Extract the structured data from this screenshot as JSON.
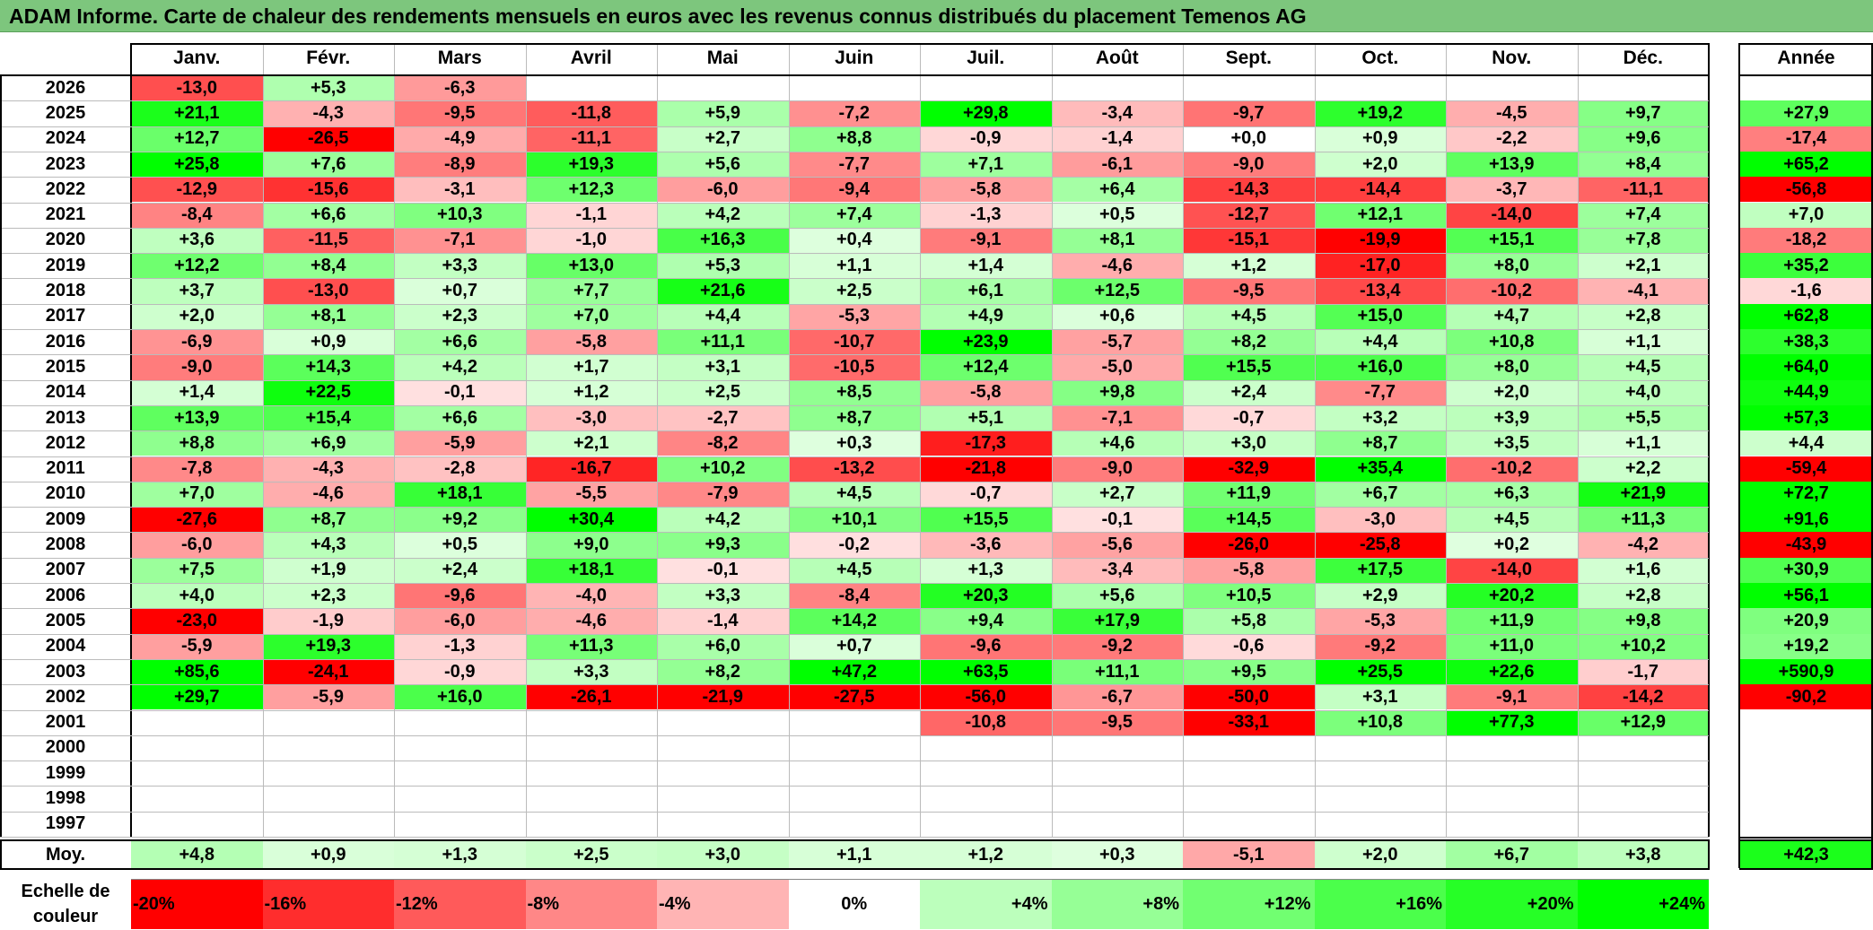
{
  "title": "ADAM Informe. Carte de chaleur des rendements mensuels en euros avec les revenus connus distribués du placement Temenos AG",
  "chart_data": {
    "type": "heatmap",
    "title": "ADAM Informe. Carte de chaleur des rendements mensuels en euros avec les revenus connus distribués du placement Temenos AG",
    "months": [
      "Janv.",
      "Févr.",
      "Mars",
      "Avril",
      "Mai",
      "Juin",
      "Juil.",
      "Août",
      "Sept.",
      "Oct.",
      "Nov.",
      "Déc."
    ],
    "annual_label": "Année",
    "average_label": "Moy.",
    "years": [
      "2026",
      "2025",
      "2024",
      "2023",
      "2022",
      "2021",
      "2020",
      "2019",
      "2018",
      "2017",
      "2016",
      "2015",
      "2014",
      "2013",
      "2012",
      "2011",
      "2010",
      "2009",
      "2008",
      "2007",
      "2006",
      "2005",
      "2004",
      "2003",
      "2002",
      "2001",
      "2000",
      "1999",
      "1998",
      "1997"
    ],
    "values": [
      [
        "-13,0",
        "+5,3",
        "-6,3",
        "",
        "",
        "",
        "",
        "",
        "",
        "",
        "",
        ""
      ],
      [
        "+21,1",
        "-4,3",
        "-9,5",
        "-11,8",
        "+5,9",
        "-7,2",
        "+29,8",
        "-3,4",
        "-9,7",
        "+19,2",
        "-4,5",
        "+9,7"
      ],
      [
        "+12,7",
        "-26,5",
        "-4,9",
        "-11,1",
        "+2,7",
        "+8,8",
        "-0,9",
        "-1,4",
        "+0,0",
        "+0,9",
        "-2,2",
        "+9,6"
      ],
      [
        "+25,8",
        "+7,6",
        "-8,9",
        "+19,3",
        "+5,6",
        "-7,7",
        "+7,1",
        "-6,1",
        "-9,0",
        "+2,0",
        "+13,9",
        "+8,4"
      ],
      [
        "-12,9",
        "-15,6",
        "-3,1",
        "+12,3",
        "-6,0",
        "-9,4",
        "-5,8",
        "+6,4",
        "-14,3",
        "-14,4",
        "-3,7",
        "-11,1"
      ],
      [
        "-8,4",
        "+6,6",
        "+10,3",
        "-1,1",
        "+4,2",
        "+7,4",
        "-1,3",
        "+0,5",
        "-12,7",
        "+12,1",
        "-14,0",
        "+7,4"
      ],
      [
        "+3,6",
        "-11,5",
        "-7,1",
        "-1,0",
        "+16,3",
        "+0,4",
        "-9,1",
        "+8,1",
        "-15,1",
        "-19,9",
        "+15,1",
        "+7,8"
      ],
      [
        "+12,2",
        "+8,4",
        "+3,3",
        "+13,0",
        "+5,3",
        "+1,1",
        "+1,4",
        "-4,6",
        "+1,2",
        "-17,0",
        "+8,0",
        "+2,1"
      ],
      [
        "+3,7",
        "-13,0",
        "+0,7",
        "+7,7",
        "+21,6",
        "+2,5",
        "+6,1",
        "+12,5",
        "-9,5",
        "-13,4",
        "-10,2",
        "-4,1"
      ],
      [
        "+2,0",
        "+8,1",
        "+2,3",
        "+7,0",
        "+4,4",
        "-5,3",
        "+4,9",
        "+0,6",
        "+4,5",
        "+15,0",
        "+4,7",
        "+2,8"
      ],
      [
        "-6,9",
        "+0,9",
        "+6,6",
        "-5,8",
        "+11,1",
        "-10,7",
        "+23,9",
        "-5,7",
        "+8,2",
        "+4,4",
        "+10,8",
        "+1,1"
      ],
      [
        "-9,0",
        "+14,3",
        "+4,2",
        "+1,7",
        "+3,1",
        "-10,5",
        "+12,4",
        "-5,0",
        "+15,5",
        "+16,0",
        "+8,0",
        "+4,5"
      ],
      [
        "+1,4",
        "+22,5",
        "-0,1",
        "+1,2",
        "+2,5",
        "+8,5",
        "-5,8",
        "+9,8",
        "+2,4",
        "-7,7",
        "+2,0",
        "+4,0"
      ],
      [
        "+13,9",
        "+15,4",
        "+6,6",
        "-3,0",
        "-2,7",
        "+8,7",
        "+5,1",
        "-7,1",
        "-0,7",
        "+3,2",
        "+3,9",
        "+5,5"
      ],
      [
        "+8,8",
        "+6,9",
        "-5,9",
        "+2,1",
        "-8,2",
        "+0,3",
        "-17,3",
        "+4,6",
        "+3,0",
        "+8,7",
        "+3,5",
        "+1,1"
      ],
      [
        "-7,8",
        "-4,3",
        "-2,8",
        "-16,7",
        "+10,2",
        "-13,2",
        "-21,8",
        "-9,0",
        "-32,9",
        "+35,4",
        "-10,2",
        "+2,2"
      ],
      [
        "+7,0",
        "-4,6",
        "+18,1",
        "-5,5",
        "-7,9",
        "+4,5",
        "-0,7",
        "+2,7",
        "+11,9",
        "+6,7",
        "+6,3",
        "+21,9"
      ],
      [
        "-27,6",
        "+8,7",
        "+9,2",
        "+30,4",
        "+4,2",
        "+10,1",
        "+15,5",
        "-0,1",
        "+14,5",
        "-3,0",
        "+4,5",
        "+11,3"
      ],
      [
        "-6,0",
        "+4,3",
        "+0,5",
        "+9,0",
        "+9,3",
        "-0,2",
        "-3,6",
        "-5,6",
        "-26,0",
        "-25,8",
        "+0,2",
        "-4,2"
      ],
      [
        "+7,5",
        "+1,9",
        "+2,4",
        "+18,1",
        "-0,1",
        "+4,5",
        "+1,3",
        "-3,4",
        "-5,8",
        "+17,5",
        "-14,0",
        "+1,6"
      ],
      [
        "+4,0",
        "+2,3",
        "-9,6",
        "-4,0",
        "+3,3",
        "-8,4",
        "+20,3",
        "+5,6",
        "+10,5",
        "+2,9",
        "+20,2",
        "+2,8"
      ],
      [
        "-23,0",
        "-1,9",
        "-6,0",
        "-4,6",
        "-1,4",
        "+14,2",
        "+9,4",
        "+17,9",
        "+5,8",
        "-5,3",
        "+11,9",
        "+9,8"
      ],
      [
        "-5,9",
        "+19,3",
        "-1,3",
        "+11,3",
        "+6,0",
        "+0,7",
        "-9,6",
        "-9,2",
        "-0,6",
        "-9,2",
        "+11,0",
        "+10,2"
      ],
      [
        "+85,6",
        "-24,1",
        "-0,9",
        "+3,3",
        "+8,2",
        "+47,2",
        "+63,5",
        "+11,1",
        "+9,5",
        "+25,5",
        "+22,6",
        "-1,7"
      ],
      [
        "+29,7",
        "-5,9",
        "+16,0",
        "-26,1",
        "-21,9",
        "-27,5",
        "-56,0",
        "-6,7",
        "-50,0",
        "+3,1",
        "-9,1",
        "-14,2"
      ],
      [
        "",
        "",
        "",
        "",
        "",
        "",
        "-10,8",
        "-9,5",
        "-33,1",
        "+10,8",
        "+77,3",
        "+12,9"
      ],
      [
        "",
        "",
        "",
        "",
        "",
        "",
        "",
        "",
        "",
        "",
        "",
        ""
      ],
      [
        "",
        "",
        "",
        "",
        "",
        "",
        "",
        "",
        "",
        "",
        "",
        ""
      ],
      [
        "",
        "",
        "",
        "",
        "",
        "",
        "",
        "",
        "",
        "",
        "",
        ""
      ],
      [
        "",
        "",
        "",
        "",
        "",
        "",
        "",
        "",
        "",
        "",
        "",
        ""
      ]
    ],
    "annual": [
      "",
      "+27,9",
      "-17,4",
      "+65,2",
      "-56,8",
      "+7,0",
      "-18,2",
      "+35,2",
      "-1,6",
      "+62,8",
      "+38,3",
      "+64,0",
      "+44,9",
      "+57,3",
      "+4,4",
      "-59,4",
      "+72,7",
      "+91,6",
      "-43,9",
      "+30,9",
      "+56,1",
      "+20,9",
      "+19,2",
      "+590,9",
      "-90,2",
      "",
      "",
      "",
      "",
      ""
    ],
    "averages": [
      "+4,8",
      "+0,9",
      "+1,3",
      "+2,5",
      "+3,0",
      "+1,1",
      "+1,2",
      "+0,3",
      "-5,1",
      "+2,0",
      "+6,7",
      "+3,8"
    ],
    "average_annual": "+42,3",
    "scale_label_line1": "Echelle de",
    "scale_label_line2": "couleur",
    "scale": [
      "-20%",
      "-16%",
      "-12%",
      "-8%",
      "-4%",
      "0%",
      "+4%",
      "+8%",
      "+12%",
      "+16%",
      "+20%",
      "+24%"
    ],
    "scale_values": [
      -20,
      -16,
      -12,
      -8,
      -4,
      0,
      4,
      8,
      12,
      16,
      20,
      24
    ],
    "colors": {
      "title_bg": "#7dc67d",
      "negative_max": "#ff0000",
      "neutral": "#ffffff",
      "positive_max": "#00ff00"
    }
  }
}
